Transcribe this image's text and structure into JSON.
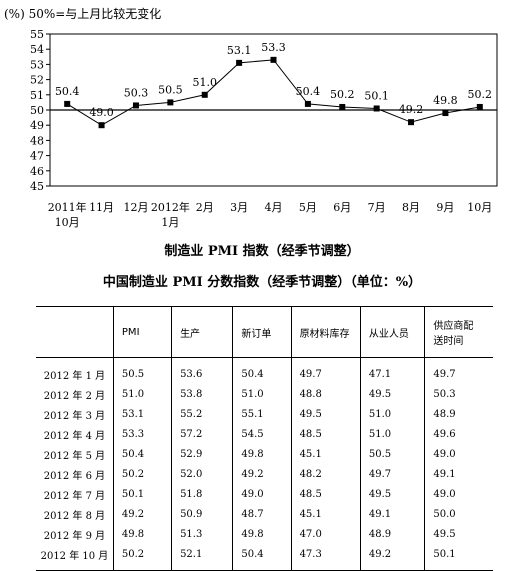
{
  "chart_data": {
    "type": "line",
    "note": "(%) 50%=与上月比较无变化",
    "categories": [
      "2011年\n10月",
      "11月",
      "12月",
      "2012年\n1月",
      "2月",
      "3月",
      "4月",
      "5月",
      "6月",
      "7月",
      "8月",
      "9月",
      "10月"
    ],
    "values": [
      50.4,
      49.0,
      50.3,
      50.5,
      51.0,
      53.1,
      53.3,
      50.4,
      50.2,
      50.1,
      49.2,
      49.8,
      50.2
    ],
    "data_labels": [
      "50.4",
      "49.0",
      "50.3",
      "50.5",
      "51.0",
      "53.1",
      "53.3",
      "50.4",
      "50.2",
      "50.1",
      "49.2",
      "49.8",
      "50.2"
    ],
    "ylim": [
      45,
      55
    ],
    "yticks": [
      "45",
      "46",
      "47",
      "48",
      "49",
      "50",
      "51",
      "52",
      "53",
      "54",
      "55"
    ],
    "reference_line": 50,
    "title": "制造业 PMI 指数（经季节调整）"
  },
  "table": {
    "title": "中国制造业 PMI 分数指数（经季节调整）（单位：%）",
    "headers": [
      "",
      "PMI",
      "生产",
      "新订单",
      "原材料库存",
      "从业人员",
      "供应商配\n送时间"
    ],
    "rows": [
      [
        "2012 年 1 月",
        "50.5",
        "53.6",
        "50.4",
        "49.7",
        "47.1",
        "49.7"
      ],
      [
        "2012 年 2 月",
        "51.0",
        "53.8",
        "51.0",
        "48.8",
        "49.5",
        "50.3"
      ],
      [
        "2012 年 3 月",
        "53.1",
        "55.2",
        "55.1",
        "49.5",
        "51.0",
        "48.9"
      ],
      [
        "2012 年 4 月",
        "53.3",
        "57.2",
        "54.5",
        "48.5",
        "51.0",
        "49.6"
      ],
      [
        "2012 年 5 月",
        "50.4",
        "52.9",
        "49.8",
        "45.1",
        "50.5",
        "49.0"
      ],
      [
        "2012 年 6 月",
        "50.2",
        "52.0",
        "49.2",
        "48.2",
        "49.7",
        "49.1"
      ],
      [
        "2012 年 7 月",
        "50.1",
        "51.8",
        "49.0",
        "48.5",
        "49.5",
        "49.0"
      ],
      [
        "2012 年 8 月",
        "49.2",
        "50.9",
        "48.7",
        "45.1",
        "49.1",
        "50.0"
      ],
      [
        "2012 年 9 月",
        "49.8",
        "51.3",
        "49.8",
        "47.0",
        "48.9",
        "49.5"
      ],
      [
        "2012 年 10 月",
        "50.2",
        "52.1",
        "50.4",
        "47.3",
        "49.2",
        "50.1"
      ]
    ]
  }
}
